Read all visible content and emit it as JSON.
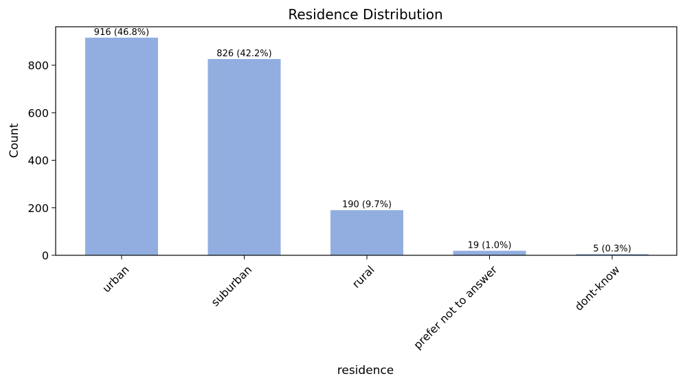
{
  "chart_data": {
    "type": "bar",
    "title": "Residence Distribution",
    "xlabel": "residence",
    "ylabel": "Count",
    "categories": [
      "urban",
      "suburban",
      "rural",
      "prefer not to answer",
      "dont-know"
    ],
    "values": [
      916,
      826,
      190,
      19,
      5
    ],
    "data_labels": [
      "916 (46.8%)",
      "826 (42.2%)",
      "190 (9.7%)",
      "19 (1.0%)",
      "5 (0.3%)"
    ],
    "y_ticks": [
      0,
      200,
      400,
      600,
      800
    ],
    "ylim": [
      0,
      961.8
    ],
    "bar_color": "#92aee0",
    "grid": false,
    "legend": "none"
  }
}
